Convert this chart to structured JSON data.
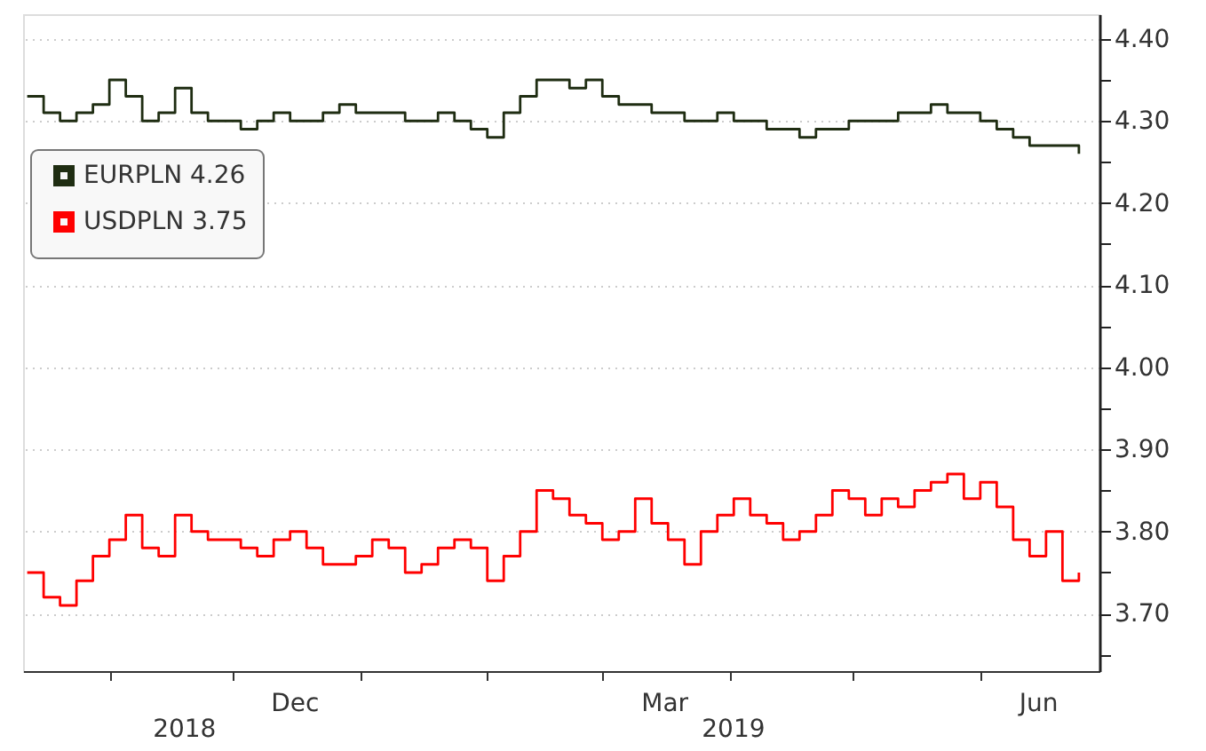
{
  "chart_data": {
    "type": "step",
    "x": [
      "2018-10-12",
      "2018-10-16",
      "2018-10-20",
      "2018-10-24",
      "2018-10-28",
      "2018-11-01",
      "2018-11-05",
      "2018-11-09",
      "2018-11-13",
      "2018-11-17",
      "2018-11-21",
      "2018-11-25",
      "2018-11-29",
      "2018-12-03",
      "2018-12-07",
      "2018-12-11",
      "2018-12-15",
      "2018-12-19",
      "2018-12-23",
      "2018-12-27",
      "2018-12-31",
      "2019-01-04",
      "2019-01-08",
      "2019-01-12",
      "2019-01-16",
      "2019-01-20",
      "2019-01-24",
      "2019-01-28",
      "2019-02-01",
      "2019-02-05",
      "2019-02-09",
      "2019-02-13",
      "2019-02-17",
      "2019-02-21",
      "2019-02-25",
      "2019-03-01",
      "2019-03-05",
      "2019-03-09",
      "2019-03-13",
      "2019-03-17",
      "2019-03-21",
      "2019-03-25",
      "2019-03-29",
      "2019-04-02",
      "2019-04-06",
      "2019-04-10",
      "2019-04-14",
      "2019-04-18",
      "2019-04-22",
      "2019-04-26",
      "2019-04-30",
      "2019-05-04",
      "2019-05-08",
      "2019-05-12",
      "2019-05-16",
      "2019-05-20",
      "2019-05-24",
      "2019-05-28",
      "2019-06-01",
      "2019-06-05",
      "2019-06-09",
      "2019-06-13",
      "2019-06-17",
      "2019-06-21",
      "2019-06-25"
    ],
    "series": [
      {
        "name": "EURPLN 4.26",
        "color": "#1f2d12",
        "values": [
          4.33,
          4.31,
          4.3,
          4.31,
          4.32,
          4.35,
          4.33,
          4.3,
          4.31,
          4.34,
          4.31,
          4.3,
          4.3,
          4.29,
          4.3,
          4.31,
          4.3,
          4.3,
          4.31,
          4.32,
          4.31,
          4.31,
          4.31,
          4.3,
          4.3,
          4.31,
          4.3,
          4.29,
          4.28,
          4.31,
          4.33,
          4.35,
          4.35,
          4.34,
          4.35,
          4.33,
          4.32,
          4.32,
          4.31,
          4.31,
          4.3,
          4.3,
          4.31,
          4.3,
          4.3,
          4.29,
          4.29,
          4.28,
          4.29,
          4.29,
          4.3,
          4.3,
          4.3,
          4.31,
          4.31,
          4.32,
          4.31,
          4.31,
          4.3,
          4.29,
          4.28,
          4.27,
          4.27,
          4.27,
          4.26
        ]
      },
      {
        "name": "USDPLN 3.75",
        "color": "#ff0000",
        "values": [
          3.75,
          3.72,
          3.71,
          3.74,
          3.77,
          3.79,
          3.82,
          3.78,
          3.77,
          3.82,
          3.8,
          3.79,
          3.79,
          3.78,
          3.77,
          3.79,
          3.8,
          3.78,
          3.76,
          3.76,
          3.77,
          3.79,
          3.78,
          3.75,
          3.76,
          3.78,
          3.79,
          3.78,
          3.74,
          3.77,
          3.8,
          3.85,
          3.84,
          3.82,
          3.81,
          3.79,
          3.8,
          3.84,
          3.81,
          3.79,
          3.76,
          3.8,
          3.82,
          3.84,
          3.82,
          3.81,
          3.79,
          3.8,
          3.82,
          3.85,
          3.84,
          3.82,
          3.84,
          3.83,
          3.85,
          3.86,
          3.87,
          3.84,
          3.86,
          3.83,
          3.79,
          3.77,
          3.8,
          3.74,
          3.75
        ]
      }
    ],
    "xlim": [
      "2018-10-11",
      "2019-06-30"
    ],
    "xticks": [
      {
        "value": "2018-11-01",
        "label": null
      },
      {
        "value": "2018-12-01",
        "label": null
      },
      {
        "value": "2018-12-16",
        "label": "Dec"
      },
      {
        "value": "2019-01-01",
        "label": null
      },
      {
        "value": "2019-02-01",
        "label": null
      },
      {
        "value": "2019-03-01",
        "label": null
      },
      {
        "value": "2019-03-16",
        "label": "Mar"
      },
      {
        "value": "2019-04-01",
        "label": null
      },
      {
        "value": "2019-05-01",
        "label": null
      },
      {
        "value": "2019-06-01",
        "label": null
      },
      {
        "value": "2019-06-15",
        "label": "Jun"
      }
    ],
    "ylim": [
      3.63,
      4.43
    ],
    "yticks": [
      {
        "value": 3.65,
        "label": null
      },
      {
        "value": 3.7,
        "label": "3.70"
      },
      {
        "value": 3.75,
        "label": null
      },
      {
        "value": 3.8,
        "label": "3.80"
      },
      {
        "value": 3.85,
        "label": null
      },
      {
        "value": 3.9,
        "label": "3.90"
      },
      {
        "value": 3.95,
        "label": null
      },
      {
        "value": 4.0,
        "label": "4.00"
      },
      {
        "value": 4.05,
        "label": null
      },
      {
        "value": 4.1,
        "label": "4.10"
      },
      {
        "value": 4.15,
        "label": null
      },
      {
        "value": 4.2,
        "label": "4.20"
      },
      {
        "value": 4.25,
        "label": null
      },
      {
        "value": 4.3,
        "label": "4.30"
      },
      {
        "value": 4.35,
        "label": null
      },
      {
        "value": 4.4,
        "label": "4.40"
      }
    ],
    "annotations": [
      "2018",
      "2019"
    ],
    "grid": "y",
    "legend": "top left",
    "line_style": "solid",
    "marker": "none"
  }
}
